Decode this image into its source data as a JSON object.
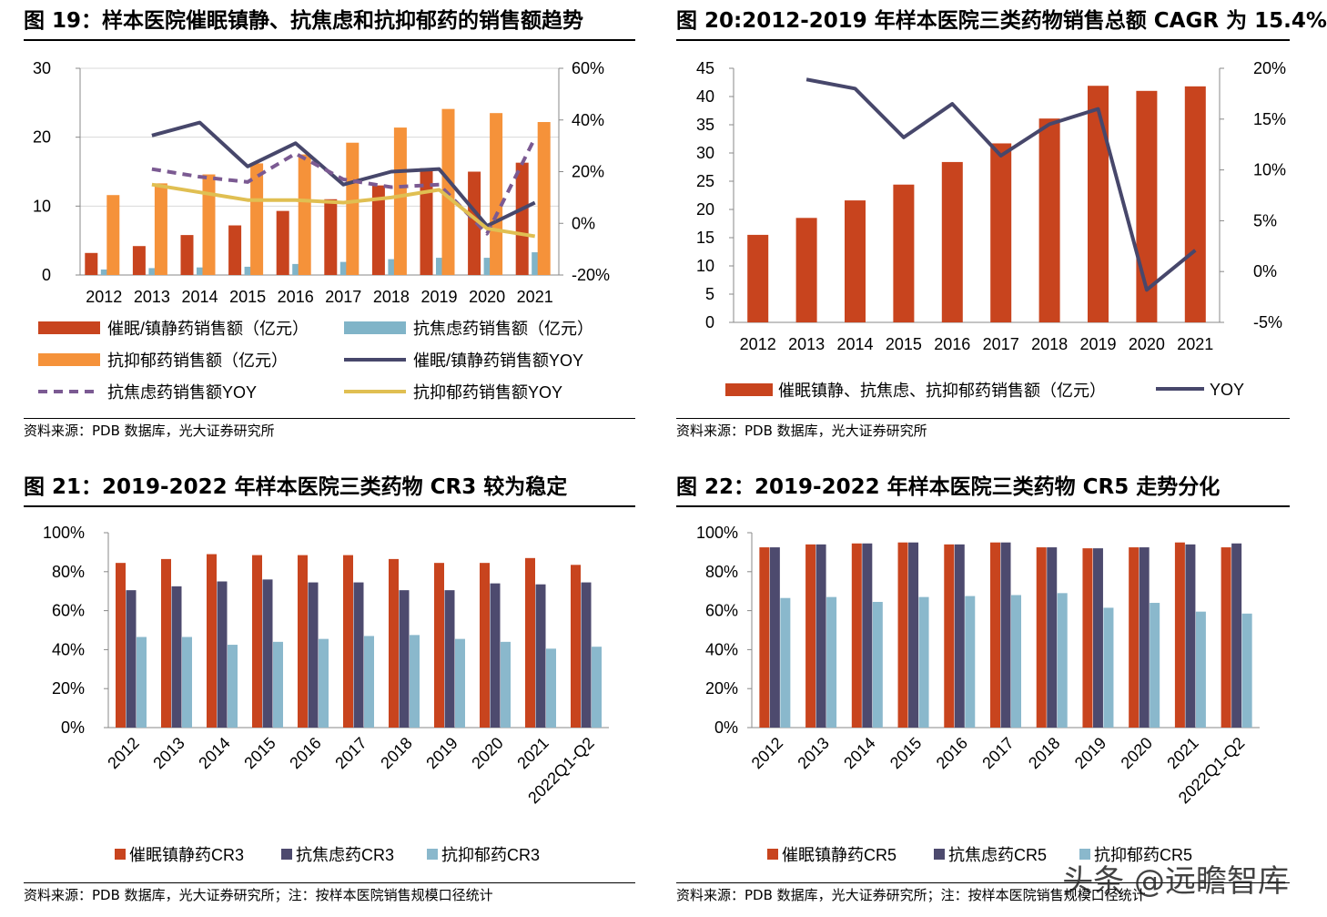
{
  "colors": {
    "sedative": "#c8441e",
    "anxiolytic": "#80b4c8",
    "antidepressant": "#f5923a",
    "sedative_yoy": "#47476b",
    "anxiolytic_yoy": "#7b5a92",
    "antidepressant_yoy": "#e0bf52",
    "cr_sedative": "#c8441e",
    "cr_anxiolytic": "#4d4a6e",
    "cr_antidepressant": "#8ab8cc"
  },
  "panels": {
    "fig19": {
      "title": "图 19：样本医院催眠镇静、抗焦虑和抗抑郁药的销售额趋势",
      "source": "资料来源：PDB 数据库，光大证券研究所"
    },
    "fig20": {
      "title": "图 20:2012-2019 年样本医院三类药物销售总额 CAGR 为 15.4%",
      "source": "资料来源：PDB 数据库，光大证券研究所"
    },
    "fig21": {
      "title": "图 21：2019-2022 年样本医院三类药物 CR3 较为稳定",
      "source": "资料来源：PDB 数据库，光大证券研究所；注：按样本医院销售规模口径统计"
    },
    "fig22": {
      "title": "图 22：2019-2022 年样本医院三类药物 CR5 走势分化",
      "source": "资料来源：PDB 数据库，光大证券研究所；注：按样本医院销售规模口径统计"
    }
  },
  "watermark": "头条 @远瞻智库",
  "chart_data": [
    {
      "id": "fig19",
      "type": "bar",
      "categories": [
        "2012",
        "2013",
        "2014",
        "2015",
        "2016",
        "2017",
        "2018",
        "2019",
        "2020",
        "2021"
      ],
      "ylim": [
        0,
        30
      ],
      "yticks": [
        "0",
        "10",
        "20",
        "30"
      ],
      "y2lim": [
        -20,
        60
      ],
      "y2ticks": [
        "-20%",
        "0%",
        "20%",
        "40%",
        "60%"
      ],
      "series": [
        {
          "name": "催眠/镇静药销售额（亿元）",
          "kind": "bar",
          "axis": "left",
          "color_key": "sedative",
          "values": [
            3.2,
            4.2,
            5.8,
            7.2,
            9.3,
            11.0,
            13.0,
            15.5,
            15.0,
            16.3
          ]
        },
        {
          "name": "抗焦虑药销售额（亿元）",
          "kind": "bar",
          "axis": "left",
          "color_key": "anxiolytic",
          "values": [
            0.8,
            1.0,
            1.1,
            1.2,
            1.6,
            1.9,
            2.3,
            2.5,
            2.5,
            3.3
          ]
        },
        {
          "name": "抗抑郁药销售额（亿元）",
          "kind": "bar",
          "axis": "left",
          "color_key": "antidepressant",
          "values": [
            11.6,
            13.3,
            14.6,
            16.2,
            17.5,
            19.2,
            21.4,
            24.1,
            23.5,
            22.2
          ]
        },
        {
          "name": "催眠/镇静药销售额YOY",
          "kind": "line",
          "axis": "right",
          "color_key": "sedative_yoy",
          "values": [
            null,
            34,
            39,
            22,
            31,
            15,
            20,
            21,
            -1,
            8
          ]
        },
        {
          "name": "抗焦虑药销售额YOY",
          "kind": "dashed",
          "axis": "right",
          "color_key": "anxiolytic_yoy",
          "values": [
            null,
            21,
            18,
            16,
            27,
            17,
            14,
            15,
            -4,
            33
          ]
        },
        {
          "name": "抗抑郁药销售额YOY",
          "kind": "line",
          "axis": "right",
          "color_key": "antidepressant_yoy",
          "values": [
            null,
            15,
            12,
            9,
            9,
            8,
            10,
            13,
            -2,
            -5
          ]
        }
      ],
      "legend": "bottom"
    },
    {
      "id": "fig20",
      "type": "bar",
      "categories": [
        "2012",
        "2013",
        "2014",
        "2015",
        "2016",
        "2017",
        "2018",
        "2019",
        "2020",
        "2021"
      ],
      "ylim": [
        0,
        45
      ],
      "yticks": [
        "0",
        "5",
        "10",
        "15",
        "20",
        "25",
        "30",
        "35",
        "40",
        "45"
      ],
      "y2lim": [
        -5,
        20
      ],
      "y2ticks": [
        "-5%",
        "0%",
        "5%",
        "10%",
        "15%",
        "20%"
      ],
      "series": [
        {
          "name": "催眠镇静、抗焦虑、抗抑郁药销售额（亿元）",
          "kind": "bar",
          "axis": "left",
          "color_key": "sedative",
          "values": [
            15.5,
            18.5,
            21.6,
            24.4,
            28.4,
            31.7,
            36.1,
            41.9,
            41.0,
            41.8
          ]
        },
        {
          "name": "YOY",
          "kind": "line",
          "axis": "right",
          "color_key": "sedative_yoy",
          "values": [
            null,
            18.9,
            18.0,
            13.2,
            16.5,
            11.4,
            14.5,
            16.0,
            -1.8,
            2.1
          ]
        }
      ],
      "legend": "bottom"
    },
    {
      "id": "fig21",
      "type": "bar",
      "categories": [
        "2012",
        "2013",
        "2014",
        "2015",
        "2016",
        "2017",
        "2018",
        "2019",
        "2020",
        "2021",
        "2022Q1-Q2"
      ],
      "ylim": [
        0,
        100
      ],
      "yticks": [
        "0%",
        "20%",
        "40%",
        "60%",
        "80%",
        "100%"
      ],
      "series": [
        {
          "name": "催眠镇静药CR3",
          "color_key": "cr_sedative",
          "values": [
            84.5,
            86.5,
            89,
            88.5,
            88.5,
            88.5,
            86.5,
            84.5,
            84.5,
            87,
            83.5
          ]
        },
        {
          "name": "抗焦虑药CR3",
          "color_key": "cr_anxiolytic",
          "values": [
            70.5,
            72.5,
            75,
            76,
            74.5,
            74.5,
            70.5,
            70.5,
            74,
            73.5,
            74.5
          ]
        },
        {
          "name": "抗抑郁药CR3",
          "color_key": "cr_antidepressant",
          "values": [
            46.5,
            46.5,
            42.5,
            44,
            45.5,
            47,
            47.5,
            45.5,
            44,
            40.5,
            41.5
          ]
        }
      ],
      "legend": "bottom"
    },
    {
      "id": "fig22",
      "type": "bar",
      "categories": [
        "2012",
        "2013",
        "2014",
        "2015",
        "2016",
        "2017",
        "2018",
        "2019",
        "2020",
        "2021",
        "2022Q1-Q2"
      ],
      "ylim": [
        0,
        100
      ],
      "yticks": [
        "0%",
        "20%",
        "40%",
        "60%",
        "80%",
        "100%"
      ],
      "series": [
        {
          "name": "催眠镇静药CR5",
          "color_key": "cr_sedative",
          "values": [
            92.5,
            94,
            94.5,
            95,
            94,
            95,
            92.5,
            92,
            92.5,
            95,
            92.5
          ]
        },
        {
          "name": "抗焦虑药CR5",
          "color_key": "cr_anxiolytic",
          "values": [
            92.5,
            94,
            94.5,
            95,
            94,
            95,
            92.5,
            92,
            92.5,
            94,
            94.5
          ]
        },
        {
          "name": "抗抑郁药CR5",
          "color_key": "cr_antidepressant",
          "values": [
            66.5,
            67,
            64.5,
            67,
            67.5,
            68,
            69,
            61.5,
            64,
            59.5,
            58.5
          ]
        }
      ],
      "legend": "bottom"
    }
  ]
}
